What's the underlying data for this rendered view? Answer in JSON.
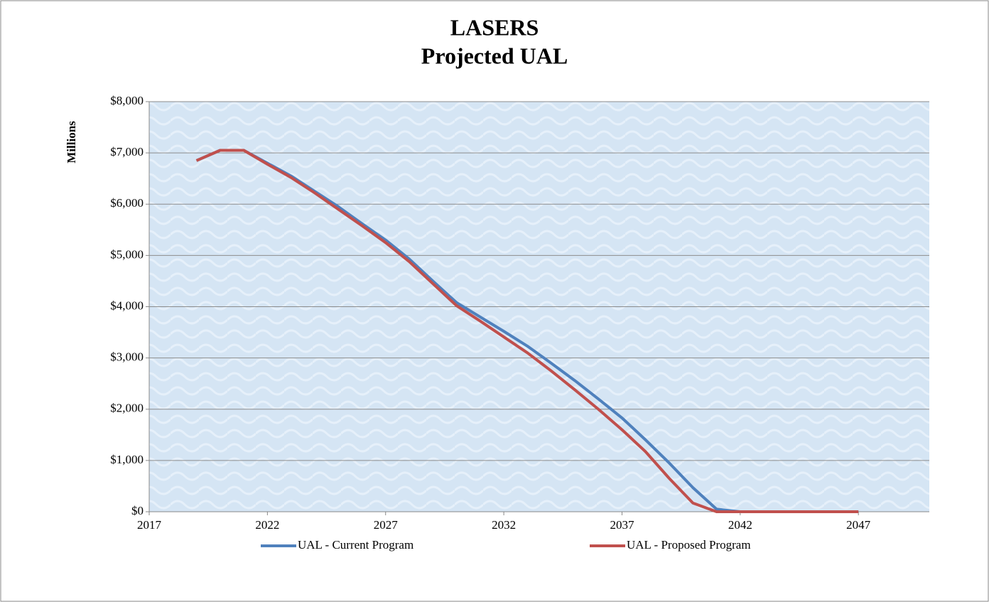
{
  "chart_data": {
    "type": "line",
    "title": "LASERS",
    "subtitle": "Projected UAL",
    "y_label": "Millions",
    "x": [
      2019,
      2020,
      2021,
      2022,
      2023,
      2024,
      2025,
      2026,
      2027,
      2028,
      2029,
      2030,
      2031,
      2032,
      2033,
      2034,
      2035,
      2036,
      2037,
      2038,
      2039,
      2040,
      2041,
      2042,
      2043,
      2044,
      2045,
      2046,
      2047
    ],
    "series": [
      {
        "name": "UAL - Current Program",
        "color": "#4f81bd",
        "values": [
          6850,
          7050,
          7050,
          6800,
          6550,
          6250,
          5950,
          5620,
          5300,
          4930,
          4500,
          4080,
          3800,
          3520,
          3230,
          2900,
          2560,
          2200,
          1830,
          1400,
          950,
          470,
          50,
          0,
          0,
          0,
          0,
          0,
          0
        ]
      },
      {
        "name": "UAL - Proposed Program",
        "color": "#c0504d",
        "values": [
          6850,
          7050,
          7050,
          6780,
          6520,
          6220,
          5900,
          5580,
          5250,
          4880,
          4450,
          4020,
          3720,
          3410,
          3100,
          2750,
          2380,
          2000,
          1600,
          1170,
          650,
          170,
          0,
          0,
          0,
          0,
          0,
          0,
          0
        ]
      }
    ],
    "xlim": [
      2017,
      2050
    ],
    "xticks": [
      2017,
      2022,
      2027,
      2032,
      2037,
      2042,
      2047
    ],
    "ylim": [
      0,
      8000
    ],
    "yticks": [
      {
        "value": 0,
        "label": "$0"
      },
      {
        "value": 1000,
        "label": "$1,000"
      },
      {
        "value": 2000,
        "label": "$2,000"
      },
      {
        "value": 3000,
        "label": "$3,000"
      },
      {
        "value": 4000,
        "label": "$4,000"
      },
      {
        "value": 5000,
        "label": "$5,000"
      },
      {
        "value": 6000,
        "label": "$6,000"
      },
      {
        "value": 7000,
        "label": "$7,000"
      },
      {
        "value": 8000,
        "label": "$8,000"
      }
    ],
    "grid": true,
    "legend": "bottom"
  }
}
